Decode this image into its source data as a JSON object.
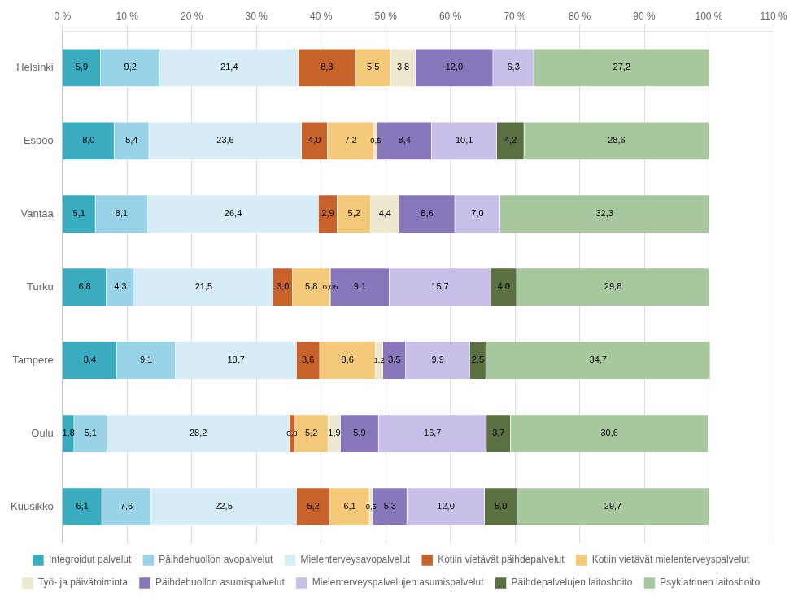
{
  "chart_data": {
    "type": "bar",
    "orientation": "horizontal",
    "stacked": true,
    "data_labels": true,
    "grid": true,
    "legend": "bottom",
    "categories": [
      "Helsinki",
      "Espoo",
      "Vantaa",
      "Turku",
      "Tampere",
      "Oulu",
      "Kuusikko"
    ],
    "series": [
      {
        "name": "Integroidut palvelut",
        "color": "#3AACBF",
        "values": [
          5.9,
          8.0,
          5.1,
          6.8,
          8.4,
          1.8,
          6.1
        ],
        "value_labels": [
          "5,9",
          "8,0",
          "5,1",
          "6,8",
          "8,4",
          "1,8",
          "6,1"
        ]
      },
      {
        "name": "Päihdehuollon avopalvelut",
        "color": "#9AD4E8",
        "values": [
          9.2,
          5.4,
          8.1,
          4.3,
          9.1,
          5.1,
          7.6
        ],
        "value_labels": [
          "9,2",
          "5,4",
          "8,1",
          "4,3",
          "9,1",
          "5,1",
          "7,6"
        ]
      },
      {
        "name": "Mielenterveysavopalvelut",
        "color": "#D6EDF8",
        "values": [
          21.4,
          23.6,
          26.4,
          21.5,
          18.7,
          28.2,
          22.5
        ],
        "value_labels": [
          "21,4",
          "23,6",
          "26,4",
          "21,5",
          "18,7",
          "28,2",
          "22,5"
        ]
      },
      {
        "name": "Kotiin vietävät päihdepalvelut",
        "color": "#C8622B",
        "values": [
          8.8,
          4.0,
          2.9,
          3.0,
          3.6,
          0.8,
          5.2
        ],
        "value_labels": [
          "8,8",
          "4,0",
          "2,9",
          "3,0",
          "3,6",
          "0,8",
          "5,2"
        ]
      },
      {
        "name": "Kotiin vietävät mielenterveyspalvelut",
        "color": "#F5C97A",
        "values": [
          5.5,
          7.2,
          5.2,
          5.8,
          8.6,
          5.2,
          6.1
        ],
        "value_labels": [
          "5,5",
          "7,2",
          "5,2",
          "5,8",
          "8,6",
          "5,2",
          "6,1"
        ]
      },
      {
        "name": "Työ- ja päivätoiminta",
        "color": "#EEE8D0",
        "values": [
          3.8,
          0.5,
          4.4,
          0.06,
          1.2,
          1.9,
          0.5
        ],
        "value_labels": [
          "3,8",
          "0,5",
          "4,4",
          "0,06",
          "1,2",
          "1,9",
          "0,5"
        ]
      },
      {
        "name": "Päihdehuollon asumispalvelut",
        "color": "#8878BB",
        "values": [
          12.0,
          8.4,
          8.6,
          9.1,
          3.5,
          5.9,
          5.3
        ],
        "value_labels": [
          "12,0",
          "8,4",
          "8,6",
          "9,1",
          "3,5",
          "5,9",
          "5,3"
        ]
      },
      {
        "name": "Mielenterveyspalvelujen asumispalvelut",
        "color": "#C8C0E8",
        "values": [
          6.3,
          10.1,
          7.0,
          15.7,
          9.9,
          16.7,
          12.0
        ],
        "value_labels": [
          "6,3",
          "10,1",
          "7,0",
          "15,7",
          "9,9",
          "16,7",
          "12,0"
        ]
      },
      {
        "name": "Päihdepalvelujen laitoshoito",
        "color": "#5A7040",
        "values": [
          0.0,
          4.2,
          0.0,
          4.0,
          2.5,
          3.7,
          5.0
        ],
        "value_labels": [
          null,
          "4,2",
          null,
          "4,0",
          "2,5",
          "3,7",
          "5,0"
        ]
      },
      {
        "name": "Psykiatrinen laitoshoito",
        "color": "#A8C8A0",
        "values": [
          27.2,
          28.6,
          32.3,
          29.8,
          34.7,
          30.6,
          29.7
        ],
        "value_labels": [
          "27,2",
          "28,6",
          "32,3",
          "29,8",
          "34,7",
          "30,6",
          "29,7"
        ]
      }
    ],
    "xlim": [
      0,
      110
    ],
    "xticks": [
      {
        "value": 0,
        "label": "0 %"
      },
      {
        "value": 10,
        "label": "10 %"
      },
      {
        "value": 20,
        "label": "20 %"
      },
      {
        "value": 30,
        "label": "30 %"
      },
      {
        "value": 40,
        "label": "40 %"
      },
      {
        "value": 50,
        "label": "50 %"
      },
      {
        "value": 60,
        "label": "60 %"
      },
      {
        "value": 70,
        "label": "70 %"
      },
      {
        "value": 80,
        "label": "80 %"
      },
      {
        "value": 90,
        "label": "90 %"
      },
      {
        "value": 100,
        "label": "100 %"
      },
      {
        "value": 110,
        "label": "110 %"
      }
    ]
  }
}
